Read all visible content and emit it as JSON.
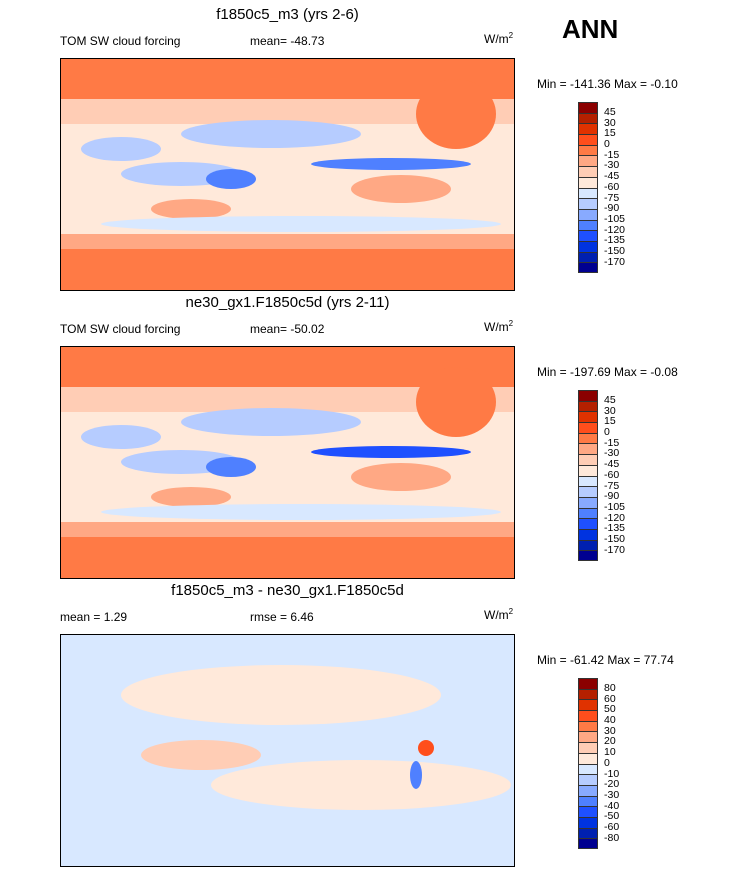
{
  "season": "ANN",
  "colors": [
    "#8b0000",
    "#b42000",
    "#e03200",
    "#ff4e1c",
    "#ff7a45",
    "#ffa884",
    "#ffcdb5",
    "#ffe9da",
    "#d8e8ff",
    "#b6ccff",
    "#88aaff",
    "#4f80ff",
    "#1f50ff",
    "#0033e0",
    "#0020b0",
    "#000090"
  ],
  "panels": [
    {
      "title": "f1850c5_m3 (yrs 2-6)",
      "left": "TOM SW cloud forcing",
      "center": "mean= -48.73",
      "units": "W/m",
      "units_sup": "2",
      "minmax": "Min = -141.36 Max =  -0.10",
      "levels": [
        "45",
        "30",
        "15",
        "0",
        "-15",
        "-30",
        "-45",
        "-60",
        "-75",
        "-90",
        "-105",
        "-120",
        "-135",
        "-150",
        "-170"
      ]
    },
    {
      "title": "ne30_gx1.F1850c5d (yrs 2-11)",
      "left": "TOM SW cloud forcing",
      "center": "mean= -50.02",
      "units": "W/m",
      "units_sup": "2",
      "minmax": "Min = -197.69 Max =  -0.08",
      "levels": [
        "45",
        "30",
        "15",
        "0",
        "-15",
        "-30",
        "-45",
        "-60",
        "-75",
        "-90",
        "-105",
        "-120",
        "-135",
        "-150",
        "-170"
      ]
    },
    {
      "title": "f1850c5_m3 - ne30_gx1.F1850c5d",
      "left": "mean =   1.29",
      "center": "rmse =   6.46",
      "units": "W/m",
      "units_sup": "2",
      "minmax": "Min = -61.42 Max =  77.74",
      "levels": [
        "80",
        "60",
        "50",
        "40",
        "30",
        "20",
        "10",
        "0",
        "-10",
        "-20",
        "-30",
        "-40",
        "-50",
        "-60",
        "-80"
      ]
    }
  ]
}
